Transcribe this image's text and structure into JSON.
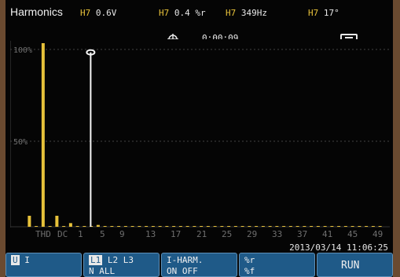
{
  "header": {
    "title": "Harmonics",
    "readouts": [
      {
        "tag": "H7",
        "value": "0.6V"
      },
      {
        "tag": "H7",
        "value": "0.4 %r"
      },
      {
        "tag": "H7",
        "value": "349Hz"
      },
      {
        "tag": "H7",
        "value": "17°"
      }
    ],
    "timer": "0:00:09",
    "timer_icon": "target-icon",
    "battery_icon": "battery-icon"
  },
  "chart_data": {
    "type": "bar",
    "categories": [
      "THD",
      "DC",
      "1",
      "2",
      "3",
      "4",
      "5",
      "6",
      "7",
      "8",
      "9",
      "10",
      "11",
      "12",
      "13",
      "14",
      "15",
      "16",
      "17",
      "18",
      "19",
      "20",
      "21",
      "22",
      "23",
      "24",
      "25",
      "26",
      "27",
      "28",
      "29",
      "30",
      "31",
      "32",
      "33",
      "34",
      "35",
      "36",
      "37",
      "38",
      "39",
      "40",
      "41",
      "42",
      "43",
      "44",
      "45",
      "46",
      "47",
      "48",
      "49",
      "50"
    ],
    "values": [
      6,
      0,
      100,
      0,
      6,
      0,
      2,
      0,
      0,
      0,
      1,
      0,
      0,
      0,
      0,
      0,
      0,
      0,
      0,
      0,
      0,
      0,
      0,
      0,
      0,
      0,
      0,
      0,
      0,
      0,
      0,
      0,
      0,
      0,
      0,
      0,
      0,
      0,
      0,
      0,
      0,
      0,
      0,
      0,
      0,
      0,
      0,
      0,
      0,
      0,
      0,
      0
    ],
    "cursor_index": 8,
    "cursor_value": 95,
    "yticks": [
      "100%",
      "50%"
    ],
    "ylim": [
      0,
      100
    ],
    "xtick_labels": [
      "THD",
      "DC",
      "1",
      "5",
      "9",
      "13",
      "17",
      "21",
      "25",
      "29",
      "33",
      "37",
      "41",
      "45",
      "49"
    ],
    "bar_color": "#e6c13a",
    "cursor_color": "#f5f5f5",
    "grid_color": "#444444"
  },
  "datetime": "2013/03/14 11:06:25",
  "softkeys": [
    {
      "line1": [
        "U",
        "I"
      ],
      "line1_sel": 0,
      "line2": ""
    },
    {
      "line1": [
        "L1",
        "L2",
        "L3"
      ],
      "line1_sel": 0,
      "line2": "N ALL"
    },
    {
      "line1": [
        "I-HARM."
      ],
      "line1_sel": -1,
      "line2": "ON OFF"
    },
    {
      "line1": [
        "%r"
      ],
      "line1_sel": -1,
      "line2": "%f"
    },
    {
      "line1": [
        "RUN"
      ],
      "line1_sel": -1,
      "line2": ""
    }
  ]
}
